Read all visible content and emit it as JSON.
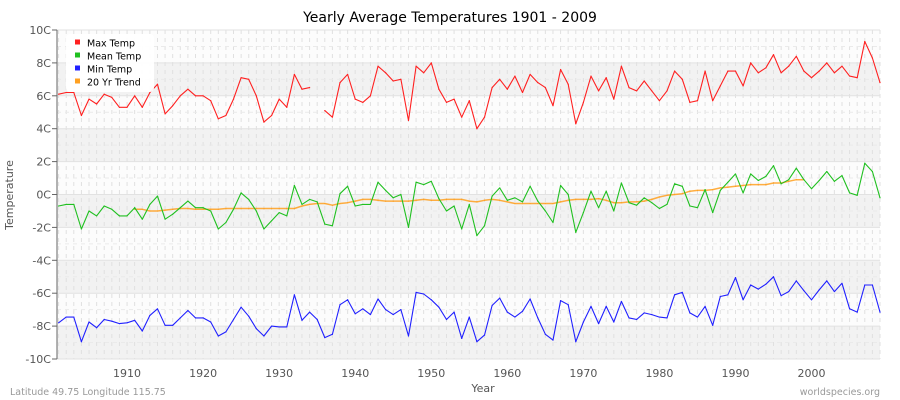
{
  "chart_data": {
    "type": "line",
    "title": "Yearly Average Temperatures 1901 - 2009",
    "xlabel": "Year",
    "ylabel": "Temperature",
    "xlim": [
      1901,
      2009
    ],
    "ylim": [
      -10,
      10
    ],
    "x_ticks": [
      1910,
      1920,
      1930,
      1940,
      1950,
      1960,
      1970,
      1980,
      1990,
      2000
    ],
    "y_ticks": [
      {
        "value": 10,
        "label": "10C"
      },
      {
        "value": 8,
        "label": "8C"
      },
      {
        "value": 6,
        "label": "6C"
      },
      {
        "value": 4,
        "label": "4C"
      },
      {
        "value": 2,
        "label": "2C"
      },
      {
        "value": 0,
        "label": "0C"
      },
      {
        "value": -2,
        "label": "-2C"
      },
      {
        "value": -4,
        "label": "-4C"
      },
      {
        "value": -6,
        "label": "-6C"
      },
      {
        "value": -8,
        "label": "-8C"
      },
      {
        "value": -10,
        "label": "-10C"
      }
    ],
    "grid": true,
    "legend_position": "top-left",
    "series": [
      {
        "name": "Max Temp",
        "color": "#ff2020",
        "start_year": 1901,
        "values": [
          6.1,
          6.2,
          6.2,
          4.8,
          5.8,
          5.5,
          6.1,
          5.9,
          5.3,
          5.3,
          6.0,
          5.3,
          6.2,
          6.7,
          4.9,
          5.4,
          6.0,
          6.4,
          6.0,
          6.0,
          5.7,
          4.6,
          4.8,
          5.8,
          7.1,
          7.0,
          6.0,
          4.4,
          4.8,
          5.8,
          5.3,
          7.3,
          6.4,
          6.5,
          null,
          5.1,
          4.7,
          6.8,
          7.3,
          5.8,
          5.6,
          6.0,
          7.8,
          7.4,
          6.9,
          7.0,
          4.5,
          7.8,
          7.4,
          8.0,
          6.4,
          5.6,
          5.8,
          4.7,
          5.7,
          4.0,
          4.7,
          6.5,
          7.0,
          6.4,
          7.2,
          6.2,
          7.3,
          6.8,
          6.5,
          5.4,
          7.6,
          6.7,
          4.3,
          5.6,
          7.2,
          6.3,
          7.1,
          5.8,
          7.8,
          6.5,
          6.3,
          6.9,
          6.3,
          5.7,
          6.3,
          7.5,
          7.0,
          5.6,
          5.7,
          7.5,
          5.7,
          6.6,
          7.5,
          7.5,
          6.6,
          8.0,
          7.4,
          7.7,
          8.5,
          7.4,
          7.8,
          8.4,
          7.5,
          7.1,
          7.5,
          8.0,
          7.4,
          7.8,
          7.2,
          7.1,
          9.3,
          8.3,
          6.8
        ]
      },
      {
        "name": "Mean Temp",
        "color": "#20c020",
        "start_year": 1901,
        "values": [
          -0.7,
          -0.6,
          -0.6,
          -2.1,
          -1.0,
          -1.3,
          -0.7,
          -0.9,
          -1.3,
          -1.3,
          -0.8,
          -1.5,
          -0.6,
          -0.1,
          -1.5,
          -1.2,
          -0.8,
          -0.4,
          -0.8,
          -0.8,
          -1.0,
          -2.1,
          -1.7,
          -0.9,
          0.1,
          -0.3,
          -1.0,
          -2.1,
          -1.6,
          -1.1,
          -1.3,
          0.55,
          -0.6,
          -0.3,
          -0.45,
          -1.8,
          -1.9,
          0.05,
          0.5,
          -0.7,
          -0.6,
          -0.6,
          0.75,
          0.25,
          -0.2,
          0.0,
          -2.0,
          0.75,
          0.6,
          0.8,
          -0.25,
          -1.0,
          -0.7,
          -2.1,
          -0.6,
          -2.5,
          -1.9,
          -0.1,
          0.4,
          -0.35,
          -0.2,
          -0.45,
          0.5,
          -0.4,
          -1.0,
          -1.7,
          0.55,
          0.0,
          -2.3,
          -1.1,
          0.2,
          -0.8,
          0.2,
          -1.0,
          0.7,
          -0.5,
          -0.65,
          -0.2,
          -0.5,
          -0.85,
          -0.6,
          0.65,
          0.5,
          -0.7,
          -0.8,
          0.3,
          -1.1,
          0.25,
          0.75,
          1.25,
          0.1,
          1.25,
          0.85,
          1.1,
          1.75,
          0.65,
          0.9,
          1.6,
          0.9,
          0.35,
          0.85,
          1.4,
          0.8,
          1.15,
          0.1,
          -0.05,
          1.9,
          1.4,
          -0.2
        ]
      },
      {
        "name": "Min Temp",
        "color": "#2020ff",
        "start_year": 1901,
        "values": [
          -7.8,
          -7.45,
          -7.45,
          -8.95,
          -7.75,
          -8.1,
          -7.6,
          -7.7,
          -7.85,
          -7.8,
          -7.65,
          -8.3,
          -7.35,
          -6.95,
          -7.95,
          -7.95,
          -7.5,
          -7.05,
          -7.5,
          -7.5,
          -7.75,
          -8.6,
          -8.35,
          -7.6,
          -6.85,
          -7.4,
          -8.15,
          -8.6,
          -8.0,
          -8.05,
          -8.05,
          -6.1,
          -7.65,
          -7.15,
          -7.6,
          -8.7,
          -8.5,
          -6.7,
          -6.4,
          -7.25,
          -6.95,
          -7.3,
          -6.35,
          -7.0,
          -7.3,
          -7.0,
          -8.6,
          -5.95,
          -6.05,
          -6.4,
          -6.85,
          -7.6,
          -7.15,
          -8.75,
          -7.45,
          -8.95,
          -8.55,
          -6.75,
          -6.3,
          -7.15,
          -7.45,
          -7.1,
          -6.35,
          -7.5,
          -8.5,
          -8.85,
          -6.45,
          -6.7,
          -8.95,
          -7.75,
          -6.8,
          -7.85,
          -6.8,
          -7.75,
          -6.5,
          -7.5,
          -7.6,
          -7.2,
          -7.3,
          -7.45,
          -7.5,
          -6.1,
          -5.95,
          -7.2,
          -7.45,
          -6.8,
          -7.95,
          -6.2,
          -6.1,
          -5.05,
          -6.4,
          -5.5,
          -5.75,
          -5.45,
          -5.0,
          -6.15,
          -5.9,
          -5.25,
          -5.85,
          -6.4,
          -5.8,
          -5.25,
          -5.9,
          -5.4,
          -6.95,
          -7.15,
          -5.5,
          -5.5,
          -7.15
        ]
      },
      {
        "name": "20 Yr Trend",
        "color": "#ffa020",
        "start_year": 1911,
        "values": [
          -0.9,
          -0.9,
          -1.0,
          -1.0,
          -0.95,
          -0.9,
          -0.85,
          -0.85,
          -0.9,
          -0.9,
          -0.9,
          -0.9,
          -0.85,
          -0.85,
          -0.85,
          -0.85,
          -0.85,
          -0.85,
          -0.85,
          -0.85,
          -0.85,
          -0.85,
          -0.7,
          -0.6,
          -0.55,
          -0.55,
          -0.65,
          -0.55,
          -0.5,
          -0.4,
          -0.3,
          -0.3,
          -0.35,
          -0.4,
          -0.4,
          -0.4,
          -0.4,
          -0.35,
          -0.3,
          -0.35,
          -0.35,
          -0.3,
          -0.3,
          -0.3,
          -0.4,
          -0.45,
          -0.35,
          -0.3,
          -0.35,
          -0.45,
          -0.55,
          -0.55,
          -0.55,
          -0.55,
          -0.55,
          -0.55,
          -0.45,
          -0.35,
          -0.3,
          -0.3,
          -0.3,
          -0.25,
          -0.35,
          -0.5,
          -0.5,
          -0.45,
          -0.45,
          -0.4,
          -0.3,
          -0.15,
          -0.05,
          0.0,
          0.05,
          0.2,
          0.25,
          0.25,
          0.3,
          0.4,
          0.45,
          0.5,
          0.55,
          0.6,
          0.6,
          0.6,
          0.7,
          0.7,
          0.8,
          0.9,
          0.9
        ]
      }
    ]
  },
  "footer": {
    "location": "Latitude 49.75 Longitude 115.75",
    "source": "worldspecies.org"
  }
}
